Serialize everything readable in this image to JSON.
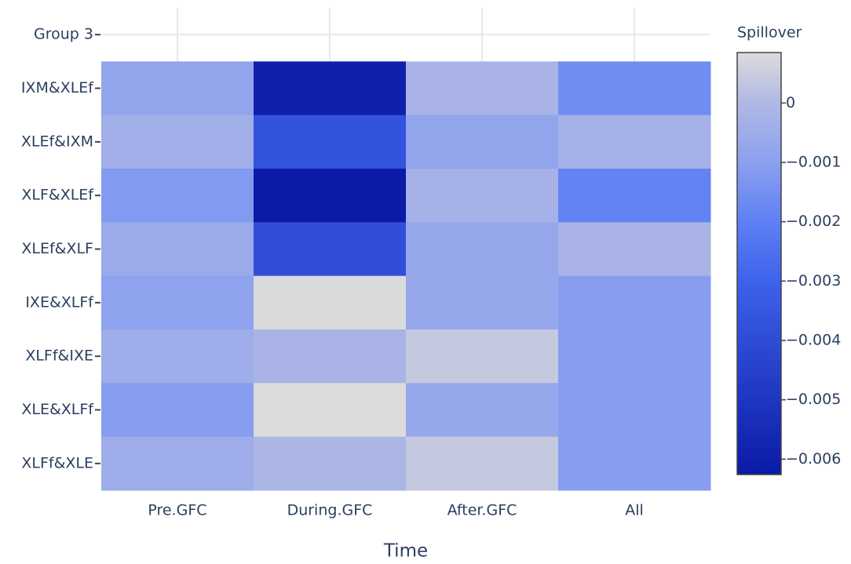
{
  "chart_data": {
    "type": "heatmap",
    "x_title": "Time",
    "colorbar_title": "Spillover",
    "x": [
      "Pre.GFC",
      "During.GFC",
      "After.GFC",
      "All"
    ],
    "y": [
      "Group 3",
      "IXM&XLEf",
      "XLEf&IXM",
      "XLF&XLEf",
      "XLEf&XLF",
      "IXE&XLFf",
      "XLFf&IXE",
      "XLE&XLFf",
      "XLFf&XLE"
    ],
    "z": [
      [
        null,
        null,
        null,
        null
      ],
      [
        -0.0008,
        -0.006,
        -0.0002,
        -0.0016
      ],
      [
        -0.0004,
        -0.0037,
        -0.0008,
        -0.0003
      ],
      [
        -0.0012,
        -0.0062,
        -0.0003,
        -0.0019
      ],
      [
        -0.0006,
        -0.0039,
        -0.0007,
        -0.0002
      ],
      [
        -0.0009,
        0.0008,
        -0.0007,
        -0.0011
      ],
      [
        -0.0005,
        -0.0002,
        0.0004,
        -0.0011
      ],
      [
        -0.0011,
        0.00085,
        -0.0007,
        -0.0011
      ],
      [
        -0.0005,
        -0.0001,
        0.0004,
        -0.0011
      ]
    ],
    "zlim": [
      -0.00626,
      0.00085
    ],
    "zticks": [
      0,
      {
        "value": -0.001,
        "label": "−0.001"
      },
      {
        "value": -0.002,
        "label": "−0.002"
      },
      {
        "value": -0.003,
        "label": "−0.003"
      },
      {
        "value": -0.004,
        "label": "−0.004"
      },
      {
        "value": -0.005,
        "label": "−0.005"
      },
      {
        "value": -0.006,
        "label": "−0.006"
      }
    ],
    "colorscale": [
      [
        0,
        "#0a1aa6"
      ],
      [
        0.46,
        "#3e62ec"
      ],
      [
        0.6,
        "#5f80f4"
      ],
      [
        0.74,
        "#8ba0ee"
      ],
      [
        0.88,
        "#b0b8e4"
      ],
      [
        1,
        "#dcdcdc"
      ]
    ]
  }
}
